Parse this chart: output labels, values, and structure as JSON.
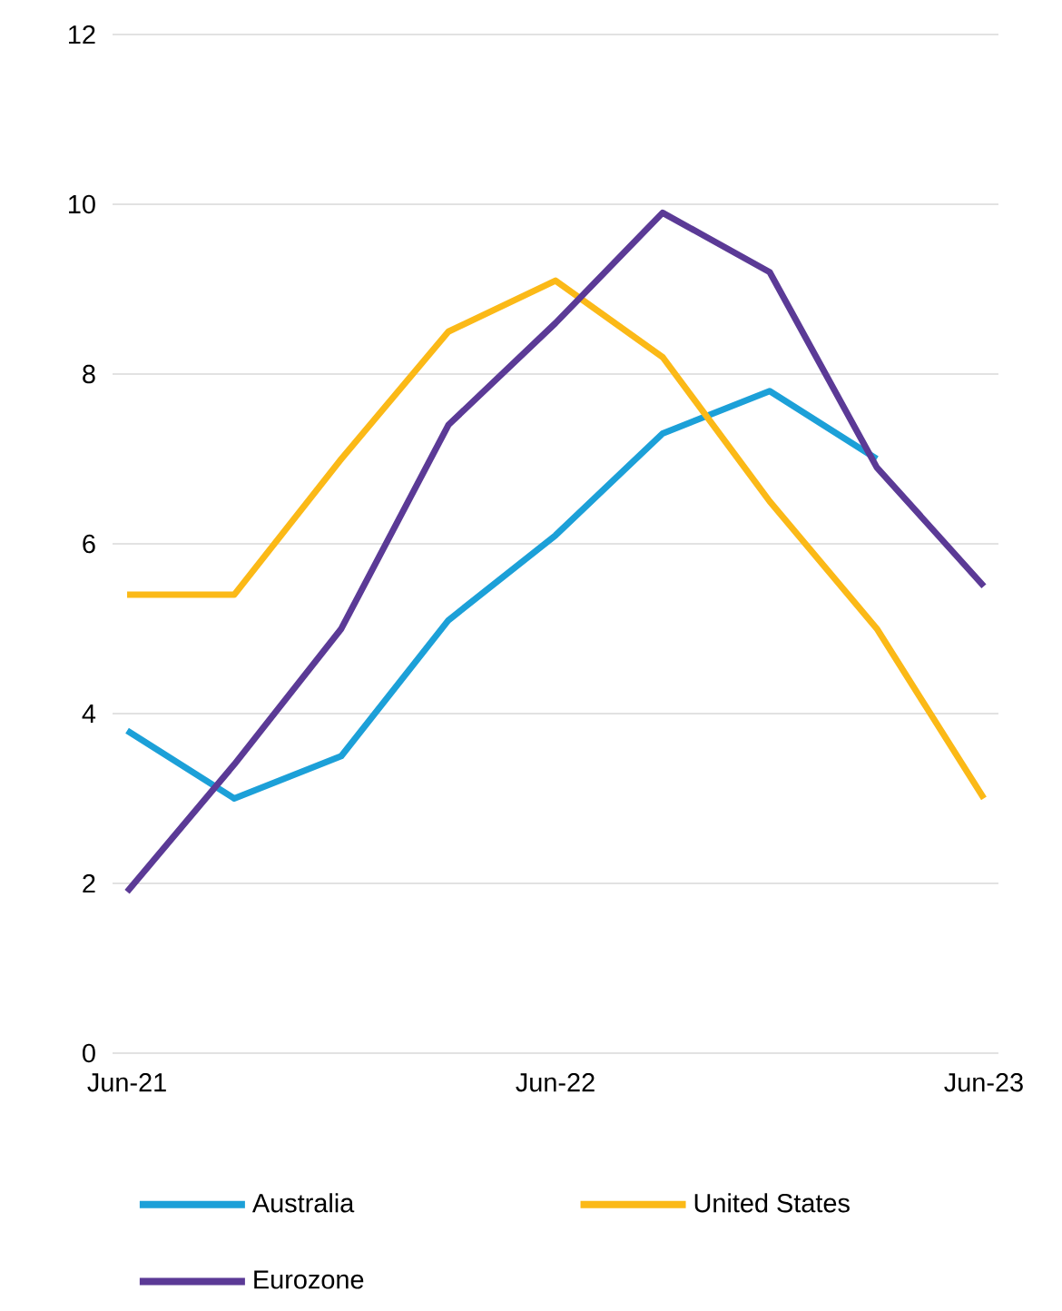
{
  "chart_data": {
    "type": "line",
    "categories": [
      "Jun-21",
      null,
      null,
      null,
      "Jun-22",
      null,
      null,
      null,
      "Jun-23"
    ],
    "series": [
      {
        "name": "Australia",
        "color": "#1ca0d8",
        "values": [
          3.8,
          3.0,
          3.5,
          5.1,
          6.1,
          7.3,
          7.8,
          7.0,
          null
        ]
      },
      {
        "name": "United States",
        "color": "#fbb917",
        "values": [
          5.4,
          5.4,
          7.0,
          8.5,
          9.1,
          8.2,
          6.5,
          5.0,
          3.0
        ]
      },
      {
        "name": "Eurozone",
        "color": "#5b3a96",
        "values": [
          1.9,
          3.4,
          5.0,
          7.4,
          8.6,
          9.9,
          9.2,
          6.9,
          5.5
        ]
      }
    ],
    "ylim": [
      0,
      12
    ],
    "yticks": [
      0,
      2,
      4,
      6,
      8,
      10,
      12
    ],
    "grid": "y",
    "legend": "bottom",
    "marker": "none",
    "line_style": "solid"
  }
}
